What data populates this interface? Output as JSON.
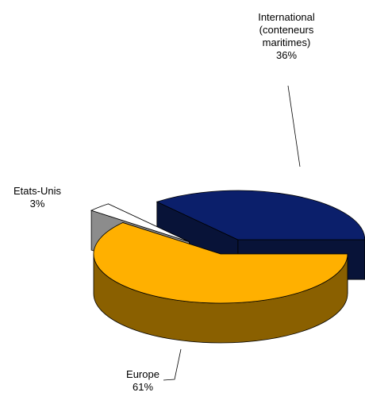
{
  "chart_data": {
    "type": "pie",
    "categories": [
      "International (conteneurs maritimes)",
      "Etats-Unis",
      "Europe"
    ],
    "values": [
      36,
      3,
      61
    ],
    "value_labels": [
      "36%",
      "3%",
      "61%"
    ],
    "colors": [
      "#0b1f6b",
      "#ffffff",
      "#ffb000"
    ],
    "side_colors": [
      "#081338",
      "#8c8c8c",
      "#8a6000"
    ]
  }
}
